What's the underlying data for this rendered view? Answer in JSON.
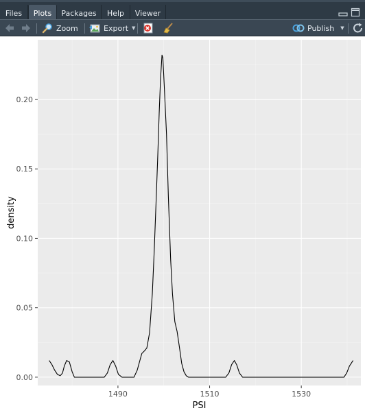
{
  "tabs": [
    {
      "label": "Files",
      "active": false
    },
    {
      "label": "Plots",
      "active": true
    },
    {
      "label": "Packages",
      "active": false
    },
    {
      "label": "Help",
      "active": false
    },
    {
      "label": "Viewer",
      "active": false
    }
  ],
  "toolbar": {
    "zoom_label": "Zoom",
    "export_label": "Export",
    "publish_label": "Publish",
    "back_icon": "arrow-left-icon",
    "forward_icon": "arrow-right-icon",
    "zoom_icon": "magnifier-icon",
    "export_icon": "image-export-icon",
    "remove_icon": "remove-plot-icon",
    "clear_icon": "broom-icon",
    "publish_icon": "publish-icon",
    "refresh_icon": "refresh-icon"
  },
  "colors": {
    "panel_bg": "#ebebeb",
    "grid_major": "#ffffff",
    "grid_minor": "#f5f5f5",
    "line": "#000000",
    "tab_bar": "#2e3a45",
    "toolbar": "#3a4753"
  },
  "chart_data": {
    "type": "line",
    "title": "",
    "xlabel": "PSI",
    "ylabel": "density",
    "xlim": [
      1472.5,
      1543
    ],
    "ylim": [
      -0.006,
      0.243
    ],
    "x_ticks": [
      1490,
      1510,
      1530
    ],
    "x_tick_labels": [
      "1490",
      "1510",
      "1530"
    ],
    "y_ticks": [
      0,
      0.05,
      0.1,
      0.15,
      0.2
    ],
    "y_tick_labels": [
      "0.00",
      "0.05",
      "0.10",
      "0.15",
      "0.20"
    ],
    "grid": true,
    "series": [
      {
        "x": [
          1475.0,
          1475.6,
          1476.2,
          1476.8,
          1477.4,
          1477.9,
          1478.3,
          1478.8,
          1479.4,
          1480.0,
          1480.5,
          1487.0,
          1487.7,
          1488.3,
          1488.9,
          1489.5,
          1490.1,
          1490.9,
          1493.5,
          1494.2,
          1494.7,
          1495.2,
          1495.8,
          1496.3,
          1496.9,
          1497.5,
          1497.9,
          1498.3,
          1498.7,
          1499.0,
          1499.3,
          1499.6,
          1499.8,
          1500.1,
          1500.6,
          1501.0,
          1501.5,
          1501.9,
          1502.4,
          1502.9,
          1503.4,
          1503.9,
          1504.4,
          1504.9,
          1505.4,
          1513.5,
          1514.2,
          1514.8,
          1515.4,
          1515.9,
          1516.5,
          1517.2,
          1539.3,
          1539.9,
          1540.5,
          1541.3
        ],
        "y": [
          0.012,
          0.009,
          0.005,
          0.002,
          0.001,
          0.003,
          0.008,
          0.012,
          0.011,
          0.004,
          0.0,
          0.0,
          0.003,
          0.009,
          0.012,
          0.008,
          0.002,
          0.0,
          0.0,
          0.005,
          0.011,
          0.017,
          0.019,
          0.021,
          0.032,
          0.06,
          0.09,
          0.125,
          0.16,
          0.19,
          0.215,
          0.232,
          0.23,
          0.21,
          0.175,
          0.13,
          0.085,
          0.06,
          0.04,
          0.033,
          0.022,
          0.01,
          0.004,
          0.001,
          0.0,
          0.0,
          0.003,
          0.009,
          0.012,
          0.009,
          0.003,
          0.0,
          0.0,
          0.003,
          0.008,
          0.012
        ]
      }
    ]
  }
}
